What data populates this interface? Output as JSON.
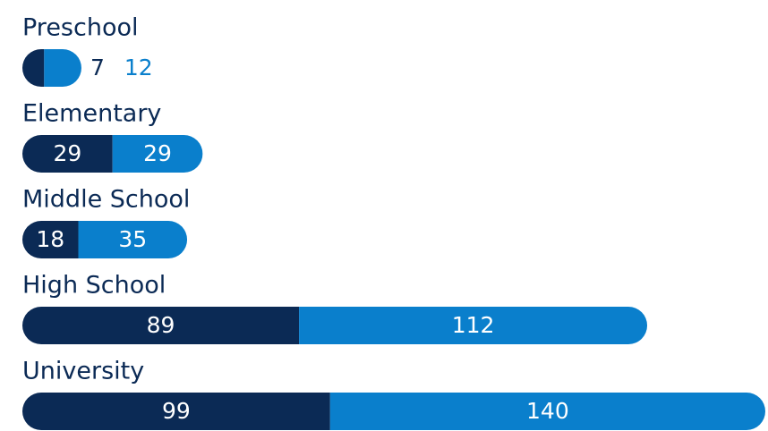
{
  "chart_data": {
    "type": "stacked-bar-horizontal",
    "categories": [
      "Preschool",
      "Elementary",
      "Middle School",
      "High School",
      "University"
    ],
    "series": [
      {
        "color": "#0b2a55",
        "values": [
          7,
          29,
          18,
          89,
          99
        ]
      },
      {
        "color": "#0a7fcc",
        "values": [
          12,
          29,
          35,
          112,
          140
        ]
      }
    ]
  }
}
